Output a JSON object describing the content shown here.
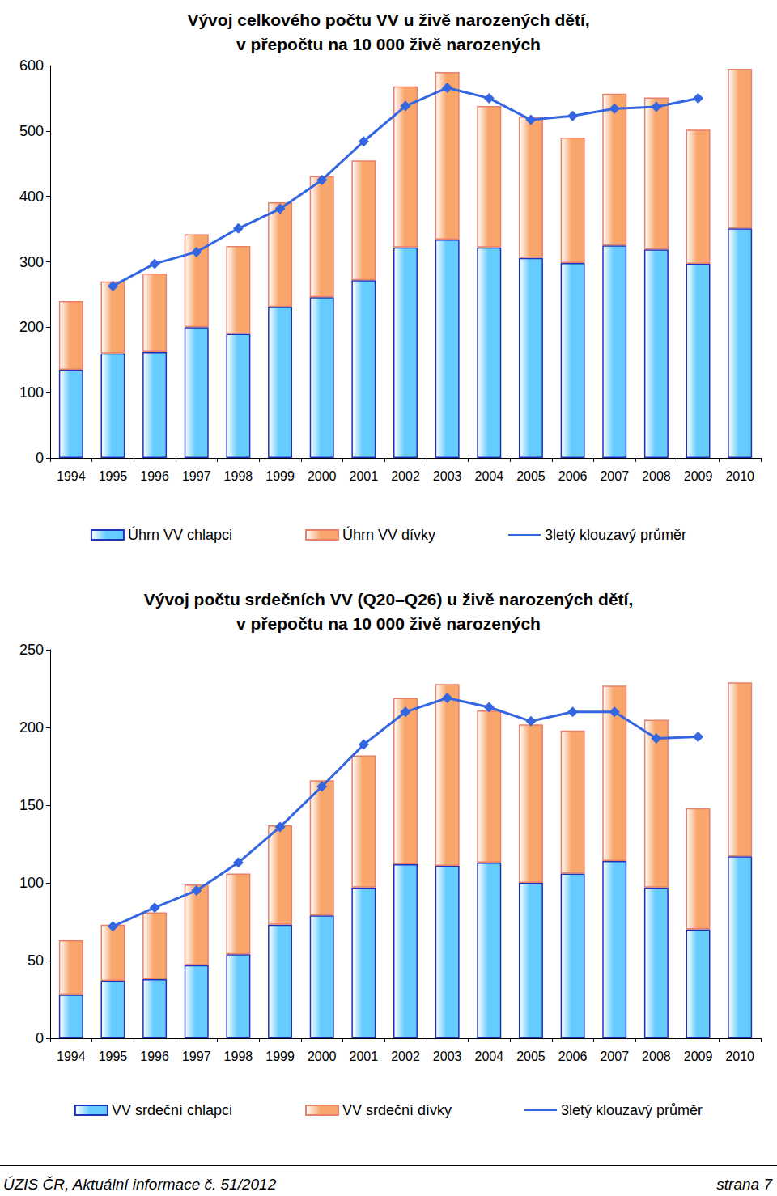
{
  "chart_data": [
    {
      "type": "bar",
      "title": "Vývoj celkového počtu VV u živě narozených dětí,\nv přepočtu na 10 000 živě narozených",
      "categories": [
        "1994",
        "1995",
        "1996",
        "1997",
        "1998",
        "1999",
        "2000",
        "2001",
        "2002",
        "2003",
        "2004",
        "2005",
        "2006",
        "2007",
        "2008",
        "2009",
        "2010"
      ],
      "stacked": true,
      "grid": false,
      "legend": "bottom",
      "ylim": [
        0,
        600
      ],
      "yticks": [
        0,
        100,
        200,
        300,
        400,
        500,
        600
      ],
      "series": [
        {
          "name": "Úhrn VV chlapci",
          "type": "bar",
          "color": "#66ccff",
          "values": [
            135,
            160,
            162,
            200,
            190,
            231,
            246,
            272,
            322,
            334,
            322,
            306,
            298,
            325,
            319,
            297,
            351
          ]
        },
        {
          "name": "Úhrn VV dívky",
          "type": "bar",
          "color": "#f9a66c",
          "values": [
            105,
            110,
            120,
            142,
            134,
            160,
            185,
            183,
            246,
            256,
            216,
            216,
            192,
            232,
            232,
            205,
            244
          ]
        },
        {
          "name": "3letý klouzavý průměr",
          "type": "line",
          "color": "#3366e0",
          "marker": "diamond",
          "values": [
            null,
            263,
            297,
            315,
            351,
            381,
            425,
            484,
            538,
            566,
            550,
            517,
            523,
            534,
            537,
            550,
            null
          ]
        }
      ]
    },
    {
      "type": "bar",
      "title": "Vývoj počtu srdečních VV (Q20–Q26) u živě narozených dětí,\nv přepočtu na 10 000 živě narozených",
      "categories": [
        "1994",
        "1995",
        "1996",
        "1997",
        "1998",
        "1999",
        "2000",
        "2001",
        "2002",
        "2003",
        "2004",
        "2005",
        "2006",
        "2007",
        "2008",
        "2009",
        "2010"
      ],
      "stacked": true,
      "grid": false,
      "legend": "bottom",
      "ylim": [
        0,
        250
      ],
      "yticks": [
        0,
        50,
        100,
        150,
        200,
        250
      ],
      "series": [
        {
          "name": "VV srdeční chlapci",
          "type": "bar",
          "color": "#66ccff",
          "values": [
            28,
            37,
            38,
            47,
            54,
            73,
            79,
            97,
            112,
            111,
            113,
            100,
            106,
            114,
            97,
            70,
            117
          ]
        },
        {
          "name": "VV srdeční dívky",
          "type": "bar",
          "color": "#f9a66c",
          "values": [
            35,
            36,
            43,
            52,
            52,
            64,
            87,
            85,
            107,
            117,
            98,
            102,
            92,
            113,
            108,
            78,
            112
          ]
        },
        {
          "name": "3letý klouzavý průměr",
          "type": "line",
          "color": "#3366e0",
          "marker": "diamond",
          "values": [
            null,
            72,
            84,
            95,
            113,
            136,
            162,
            189,
            210,
            219,
            213,
            204,
            210,
            210,
            193,
            194,
            null
          ]
        }
      ]
    }
  ],
  "footer": {
    "left": "ÚZIS ČR, Aktuální informace č. 51/2012",
    "right": "strana 7"
  }
}
